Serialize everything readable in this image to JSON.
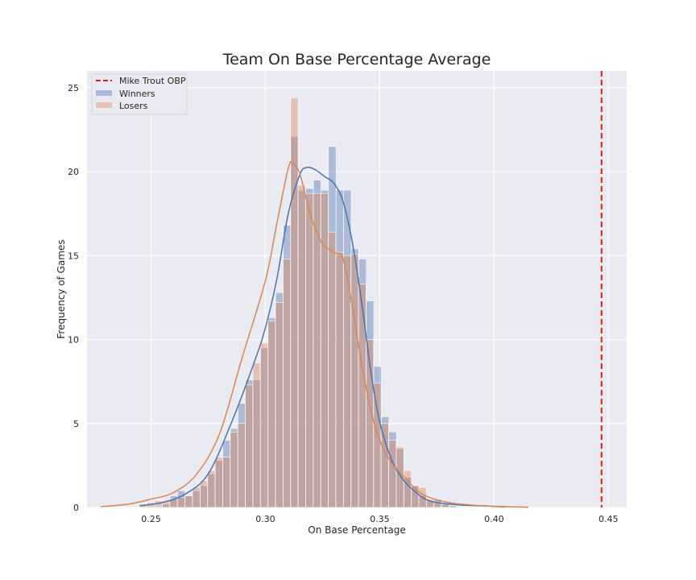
{
  "chart_data": {
    "type": "histogram",
    "title": "Team On Base Percentage Average",
    "xlabel": "On Base Percentage",
    "ylabel": "Frequency of Games",
    "xlim": [
      0.222,
      0.458
    ],
    "ylim": [
      0,
      26
    ],
    "xticks": [
      0.25,
      0.3,
      0.35,
      0.4,
      0.45
    ],
    "xtick_labels": [
      "0.25",
      "0.30",
      "0.35",
      "0.40",
      "0.45"
    ],
    "yticks": [
      0,
      5,
      10,
      15,
      20,
      25
    ],
    "ytick_labels": [
      "0",
      "5",
      "10",
      "15",
      "20",
      "25"
    ],
    "grid": true,
    "legend_position": "top-left",
    "bin_width": 0.0033,
    "vline": {
      "name": "Mike Trout OBP",
      "x": 0.447,
      "color": "#e41a1c",
      "style": "dashed"
    },
    "series": [
      {
        "name": "Winners",
        "color": "#4c72b0",
        "bins": [
          [
            0.255,
            0.2
          ],
          [
            0.2583,
            0.7
          ],
          [
            0.2616,
            1.0
          ],
          [
            0.2649,
            0.7
          ],
          [
            0.2682,
            1.0
          ],
          [
            0.2715,
            1.3
          ],
          [
            0.2748,
            2.0
          ],
          [
            0.2781,
            2.8
          ],
          [
            0.2814,
            4.0
          ],
          [
            0.2847,
            4.7
          ],
          [
            0.288,
            6.2
          ],
          [
            0.2913,
            7.6
          ],
          [
            0.2946,
            7.6
          ],
          [
            0.2979,
            9.5
          ],
          [
            0.3012,
            11.3
          ],
          [
            0.3045,
            12.8
          ],
          [
            0.3078,
            16.8
          ],
          [
            0.3111,
            22.1
          ],
          [
            0.3144,
            18.9
          ],
          [
            0.3177,
            19.0
          ],
          [
            0.321,
            19.5
          ],
          [
            0.3243,
            18.9
          ],
          [
            0.3276,
            21.5
          ],
          [
            0.3309,
            18.9
          ],
          [
            0.3342,
            18.9
          ],
          [
            0.3375,
            15.4
          ],
          [
            0.3408,
            14.8
          ],
          [
            0.3441,
            12.3
          ],
          [
            0.3474,
            8.4
          ],
          [
            0.3507,
            5.4
          ],
          [
            0.354,
            4.5
          ],
          [
            0.3573,
            3.5
          ],
          [
            0.3606,
            1.8
          ],
          [
            0.3639,
            1.3
          ],
          [
            0.3672,
            0.7
          ],
          [
            0.3705,
            0.4
          ],
          [
            0.3738,
            0.5
          ],
          [
            0.3771,
            0.2
          ],
          [
            0.3804,
            0.1
          ]
        ],
        "kde": [
          [
            0.245,
            0.1
          ],
          [
            0.255,
            0.3
          ],
          [
            0.265,
            0.8
          ],
          [
            0.275,
            2.0
          ],
          [
            0.285,
            5.0
          ],
          [
            0.295,
            8.6
          ],
          [
            0.3,
            10.7
          ],
          [
            0.305,
            13.6
          ],
          [
            0.31,
            17.5
          ],
          [
            0.315,
            19.8
          ],
          [
            0.318,
            20.25
          ],
          [
            0.322,
            20.1
          ],
          [
            0.326,
            19.7
          ],
          [
            0.33,
            19.3
          ],
          [
            0.334,
            18.2
          ],
          [
            0.338,
            15.8
          ],
          [
            0.342,
            12.3
          ],
          [
            0.346,
            8.2
          ],
          [
            0.35,
            5.1
          ],
          [
            0.355,
            2.9
          ],
          [
            0.36,
            1.7
          ],
          [
            0.365,
            1.0
          ],
          [
            0.37,
            0.5
          ],
          [
            0.375,
            0.3
          ],
          [
            0.385,
            0.15
          ],
          [
            0.395,
            0.1
          ],
          [
            0.405,
            0.03
          ]
        ]
      },
      {
        "name": "Losers",
        "color": "#dd8452",
        "bins": [
          [
            0.245,
            0.2
          ],
          [
            0.2483,
            0.3
          ],
          [
            0.2516,
            0.4
          ],
          [
            0.2549,
            0.4
          ],
          [
            0.2582,
            0.5
          ],
          [
            0.2615,
            0.6
          ],
          [
            0.2648,
            0.7
          ],
          [
            0.2681,
            1.2
          ],
          [
            0.2714,
            1.6
          ],
          [
            0.2747,
            2.2
          ],
          [
            0.278,
            3.0
          ],
          [
            0.2813,
            3.0
          ],
          [
            0.2846,
            4.5
          ],
          [
            0.2879,
            5.0
          ],
          [
            0.2912,
            7.3
          ],
          [
            0.2945,
            8.6
          ],
          [
            0.2978,
            9.8
          ],
          [
            0.3011,
            11.1
          ],
          [
            0.3044,
            12.2
          ],
          [
            0.3077,
            14.8
          ],
          [
            0.311,
            24.4
          ],
          [
            0.3143,
            19.2
          ],
          [
            0.3176,
            18.7
          ],
          [
            0.3209,
            18.7
          ],
          [
            0.3242,
            18.7
          ],
          [
            0.3275,
            16.4
          ],
          [
            0.3308,
            15.2
          ],
          [
            0.3341,
            15.0
          ],
          [
            0.3374,
            15.1
          ],
          [
            0.3407,
            13.3
          ],
          [
            0.344,
            10.0
          ],
          [
            0.3473,
            7.4
          ],
          [
            0.3506,
            5.0
          ],
          [
            0.3539,
            4.0
          ],
          [
            0.3572,
            3.6
          ],
          [
            0.3605,
            2.2
          ],
          [
            0.3638,
            1.3
          ],
          [
            0.3671,
            1.2
          ],
          [
            0.3704,
            0.5
          ],
          [
            0.3737,
            0.3
          ],
          [
            0.377,
            0.2
          ],
          [
            0.3803,
            0.1
          ]
        ],
        "kde": [
          [
            0.228,
            0.05
          ],
          [
            0.24,
            0.2
          ],
          [
            0.25,
            0.5
          ],
          [
            0.26,
            0.9
          ],
          [
            0.27,
            2.0
          ],
          [
            0.28,
            4.4
          ],
          [
            0.29,
            9.0
          ],
          [
            0.3,
            13.5
          ],
          [
            0.305,
            16.9
          ],
          [
            0.31,
            20.2
          ],
          [
            0.312,
            20.5
          ],
          [
            0.315,
            19.9
          ],
          [
            0.318,
            18.3
          ],
          [
            0.321,
            16.9
          ],
          [
            0.325,
            15.7
          ],
          [
            0.33,
            15.2
          ],
          [
            0.334,
            14.8
          ],
          [
            0.338,
            12.0
          ],
          [
            0.342,
            8.6
          ],
          [
            0.346,
            5.9
          ],
          [
            0.35,
            4.0
          ],
          [
            0.355,
            2.7
          ],
          [
            0.36,
            1.9
          ],
          [
            0.365,
            1.2
          ],
          [
            0.37,
            0.7
          ],
          [
            0.38,
            0.3
          ],
          [
            0.395,
            0.1
          ],
          [
            0.415,
            0.02
          ]
        ]
      }
    ]
  }
}
